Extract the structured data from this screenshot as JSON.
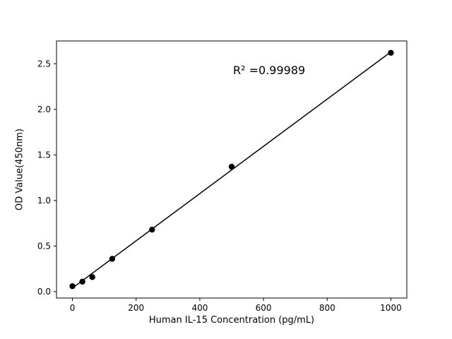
{
  "chart_data": {
    "type": "scatter",
    "title": "",
    "xlabel": "Human IL-15 Concentration (pg/mL)",
    "ylabel": "OD Value(450nm)",
    "annotation": "R² =0.99989",
    "x": [
      0,
      31.25,
      62.5,
      125,
      250,
      500,
      1000
    ],
    "y": [
      0.06,
      0.11,
      0.16,
      0.36,
      0.68,
      1.37,
      2.62
    ],
    "fit_line": {
      "x0": 0,
      "y0": 0.04,
      "x1": 1000,
      "y1": 2.63
    },
    "xlim": [
      -50,
      1050
    ],
    "ylim": [
      -0.07,
      2.75
    ],
    "x_ticks": [
      "0",
      "200",
      "400",
      "600",
      "800",
      "1000"
    ],
    "y_ticks": [
      "0.0",
      "0.5",
      "1.0",
      "1.5",
      "2.0",
      "2.5"
    ],
    "grid": false,
    "legend": false,
    "marker_color": "#000000",
    "line_color": "#000000",
    "frame_color": "#000000",
    "marker_radius": 4.2
  }
}
